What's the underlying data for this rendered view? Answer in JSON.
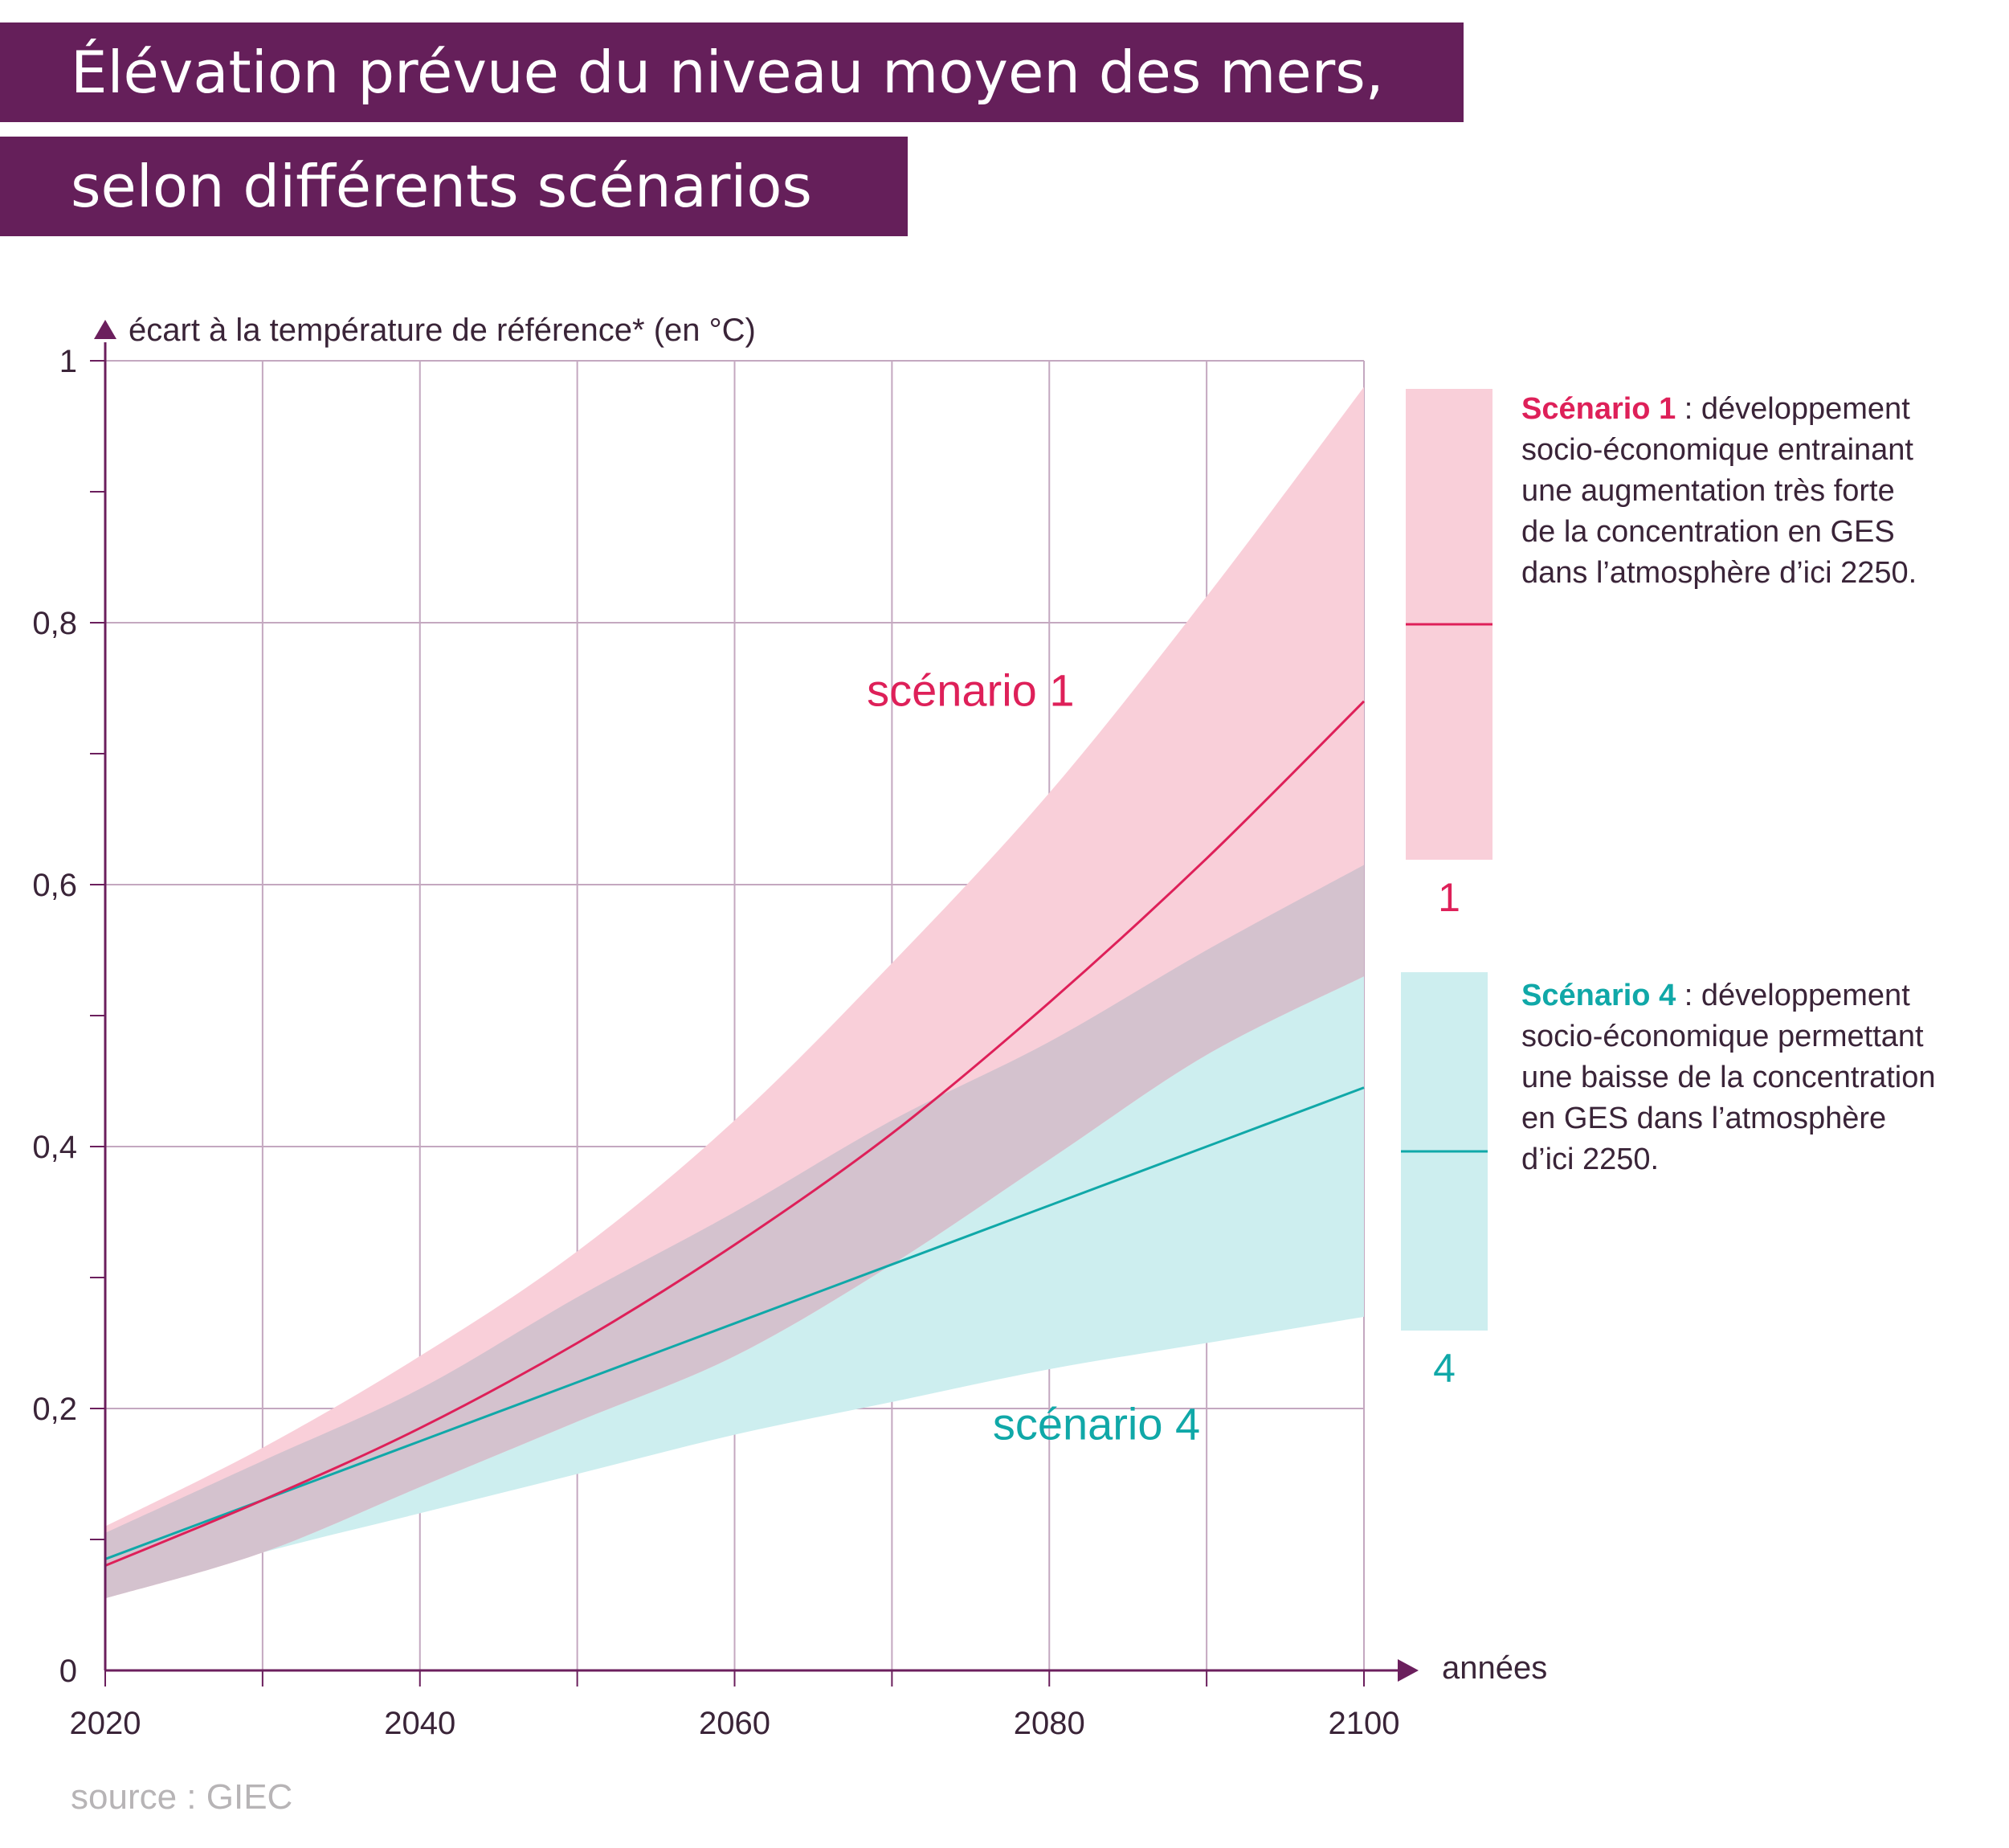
{
  "title": {
    "line1": "Élévation prévue du niveau moyen des mers,",
    "line2": "selon différents scénarios"
  },
  "colors": {
    "title_bg": "#651f5a",
    "axis": "#6b1f5d",
    "grid": "#c4a8c0",
    "scenario1_line": "#de2059",
    "scenario1_band": "#f9cfd9",
    "scenario4_line": "#10a8a8",
    "scenario4_band": "#cdeeef",
    "overlap_band": "#d4c2ce",
    "overlap_line": "#2e8b98"
  },
  "chart_data": {
    "type": "area",
    "ylabel": "écart à la température de référence* (en °C)",
    "xlabel": "années",
    "xlim": [
      2020,
      2100
    ],
    "ylim": [
      0,
      1
    ],
    "x_ticks": [
      2020,
      2040,
      2060,
      2080,
      2100
    ],
    "x_tick_labels": [
      "2020",
      "2040",
      "2060",
      "2080",
      "2100"
    ],
    "y_ticks": [
      0,
      0.2,
      0.4,
      0.6,
      0.8,
      1
    ],
    "y_tick_labels": [
      "0",
      "0,2",
      "0,4",
      "0,6",
      "0,8",
      "1"
    ],
    "x": [
      2020,
      2030,
      2040,
      2050,
      2060,
      2070,
      2080,
      2090,
      2100
    ],
    "series": [
      {
        "name": "scénario 1",
        "median": [
          0.08,
          0.13,
          0.185,
          0.25,
          0.325,
          0.41,
          0.51,
          0.62,
          0.74
        ],
        "low": [
          0.055,
          0.09,
          0.14,
          0.19,
          0.24,
          0.31,
          0.39,
          0.47,
          0.53
        ],
        "high": [
          0.11,
          0.17,
          0.24,
          0.32,
          0.42,
          0.54,
          0.67,
          0.82,
          0.98
        ]
      },
      {
        "name": "scénario 4",
        "median": [
          0.085,
          0.13,
          0.175,
          0.22,
          0.265,
          0.31,
          0.355,
          0.4,
          0.445
        ],
        "low": [
          0.055,
          0.09,
          0.12,
          0.15,
          0.18,
          0.205,
          0.23,
          0.25,
          0.27
        ],
        "high": [
          0.105,
          0.16,
          0.215,
          0.285,
          0.35,
          0.42,
          0.48,
          0.55,
          0.615
        ]
      }
    ],
    "annotations": [
      {
        "text": "scénario 1",
        "x": 2075,
        "y": 0.75,
        "series": "scénario 1"
      },
      {
        "text": "scénario 4",
        "x": 2083,
        "y": 0.19,
        "series": "scénario 4"
      }
    ],
    "legend": {
      "placement": "right",
      "items": [
        {
          "number": "1",
          "lead": "Scénario 1",
          "text": " : développement\nsocio-économique entrainant\nune augmentation très forte\nde la concentration en GES\ndans l’atmosphère d’ici 2250."
        },
        {
          "number": "4",
          "lead": "Scénario 4",
          "text": " : développement\nsocio-économique permettant\nune baisse de la concentration\nen GES dans l’atmosphère\nd’ici 2250."
        }
      ]
    }
  },
  "source": "source : GIEC"
}
